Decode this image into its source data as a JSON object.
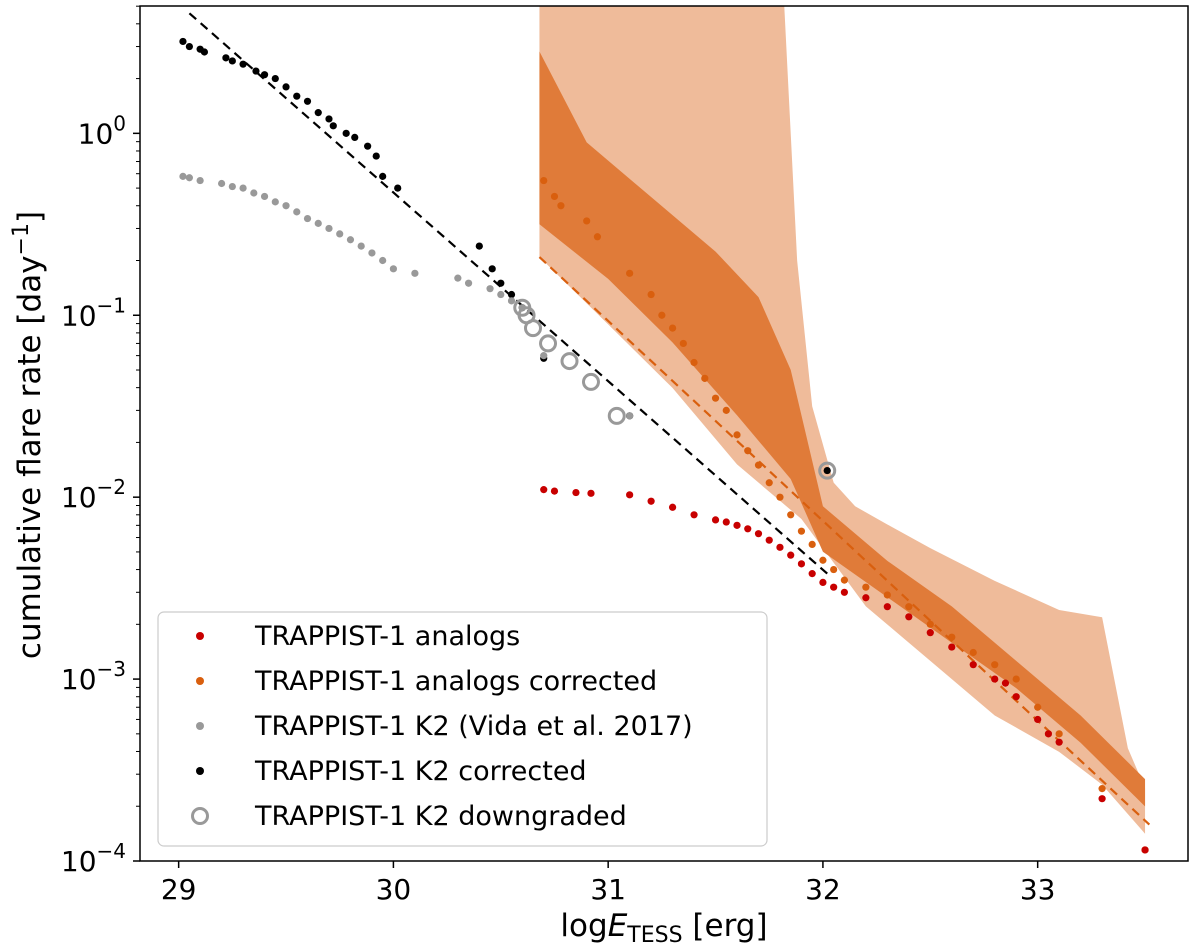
{
  "chart_data": {
    "type": "scatter",
    "xlabel": "logE_TESS [erg]",
    "ylabel": "cumulative flare rate [day^-1]",
    "xlim": [
      28.82,
      33.7
    ],
    "ylim_log10": [
      -4.0,
      0.7
    ],
    "yscale": "log",
    "xticks": [
      "29",
      "30",
      "31",
      "32",
      "33"
    ],
    "yticks": [
      {
        "base": "10",
        "exp": "0",
        "value": 1
      },
      {
        "base": "10",
        "exp": "-1",
        "value": 0.1
      },
      {
        "base": "10",
        "exp": "-2",
        "value": 0.01
      },
      {
        "base": "10",
        "exp": "-3",
        "value": 0.001
      },
      {
        "base": "10",
        "exp": "-4",
        "value": 0.0001
      }
    ],
    "colors": {
      "analogs": "#c80000",
      "corrected": "#d95f0e",
      "band_inner": "#e07b39",
      "band_outer": "#efbb9a",
      "k2_vida": "#999999",
      "k2_corrected": "#000000",
      "k2_downgraded": "#999999",
      "fit_k2": "#000000",
      "fit_analogs": "#d95f0e"
    },
    "legend": [
      {
        "label": "TRAPPIST-1 analogs",
        "marker": "dot",
        "color": "#c80000"
      },
      {
        "label": "TRAPPIST-1 analogs corrected",
        "marker": "dot",
        "color": "#d95f0e"
      },
      {
        "label": "TRAPPIST-1 K2 (Vida et al. 2017)",
        "marker": "dot",
        "color": "#999999"
      },
      {
        "label": "TRAPPIST-1 K2 corrected",
        "marker": "dot",
        "color": "#000000"
      },
      {
        "label": "TRAPPIST-1 K2 downgraded",
        "marker": "ring",
        "color": "#999999"
      }
    ],
    "bands": {
      "outer": {
        "upper": [
          [
            30.68,
            0.7
          ],
          [
            31.82,
            0.7
          ],
          [
            31.88,
            -0.7
          ],
          [
            31.95,
            -1.5
          ],
          [
            32.05,
            -1.92
          ],
          [
            32.15,
            -2.05
          ],
          [
            32.3,
            -2.15
          ],
          [
            32.5,
            -2.28
          ],
          [
            32.8,
            -2.46
          ],
          [
            33.1,
            -2.62
          ],
          [
            33.3,
            -2.66
          ],
          [
            33.42,
            -3.38
          ],
          [
            33.5,
            -3.6
          ]
        ],
        "lower": [
          [
            30.68,
            -0.68
          ],
          [
            31.0,
            -1.05
          ],
          [
            31.3,
            -1.4
          ],
          [
            31.6,
            -1.82
          ],
          [
            31.9,
            -2.12
          ],
          [
            32.2,
            -2.6
          ],
          [
            32.5,
            -2.9
          ],
          [
            32.8,
            -3.2
          ],
          [
            33.1,
            -3.4
          ],
          [
            33.3,
            -3.58
          ],
          [
            33.5,
            -3.85
          ]
        ]
      },
      "inner": {
        "upper": [
          [
            30.68,
            0.45
          ],
          [
            30.9,
            -0.05
          ],
          [
            31.2,
            -0.35
          ],
          [
            31.5,
            -0.65
          ],
          [
            31.7,
            -0.9
          ],
          [
            31.85,
            -1.3
          ],
          [
            32.0,
            -2.05
          ],
          [
            32.3,
            -2.35
          ],
          [
            32.6,
            -2.6
          ],
          [
            32.9,
            -2.9
          ],
          [
            33.2,
            -3.2
          ],
          [
            33.5,
            -3.55
          ]
        ],
        "lower": [
          [
            30.68,
            -0.5
          ],
          [
            31.0,
            -0.8
          ],
          [
            31.3,
            -1.15
          ],
          [
            31.6,
            -1.55
          ],
          [
            31.85,
            -1.9
          ],
          [
            32.0,
            -2.3
          ],
          [
            32.3,
            -2.55
          ],
          [
            32.6,
            -2.8
          ],
          [
            32.9,
            -3.05
          ],
          [
            33.2,
            -3.35
          ],
          [
            33.5,
            -3.7
          ]
        ]
      }
    },
    "fits": [
      {
        "name": "K2 power law",
        "x": [
          29.05,
          32.02
        ],
        "y_log10": [
          0.66,
          -2.42
        ],
        "color": "#000000"
      },
      {
        "name": "analogs power law",
        "x": [
          30.68,
          33.52
        ],
        "y_log10": [
          -0.68,
          -3.8
        ],
        "color": "#d95f0e"
      }
    ],
    "series": [
      {
        "name": "TRAPPIST-1 K2 corrected",
        "x": [
          29.02,
          29.05,
          29.1,
          29.12,
          29.22,
          29.25,
          29.3,
          29.36,
          29.4,
          29.45,
          29.5,
          29.55,
          29.6,
          29.65,
          29.7,
          29.72,
          29.78,
          29.82,
          29.88,
          29.92,
          29.95,
          30.02,
          30.4,
          30.46,
          30.5,
          30.55,
          30.6,
          30.7,
          31.1
        ],
        "y": [
          3.2,
          3.0,
          2.9,
          2.8,
          2.6,
          2.5,
          2.4,
          2.2,
          2.1,
          2.0,
          1.8,
          1.6,
          1.5,
          1.3,
          1.2,
          1.1,
          1.0,
          0.95,
          0.85,
          0.75,
          0.58,
          0.5,
          0.24,
          0.18,
          0.15,
          0.13,
          0.11,
          0.058,
          0.028
        ]
      },
      {
        "name": "TRAPPIST-1 K2 (Vida et al. 2017)",
        "x": [
          29.02,
          29.05,
          29.1,
          29.2,
          29.25,
          29.3,
          29.35,
          29.4,
          29.45,
          29.5,
          29.55,
          29.6,
          29.65,
          29.7,
          29.75,
          29.8,
          29.85,
          29.9,
          29.95,
          30.0,
          30.1,
          30.3,
          30.35,
          30.45,
          30.5,
          30.55,
          30.6,
          30.7,
          31.1
        ],
        "y": [
          0.58,
          0.57,
          0.55,
          0.53,
          0.51,
          0.5,
          0.47,
          0.45,
          0.42,
          0.4,
          0.37,
          0.34,
          0.32,
          0.3,
          0.28,
          0.26,
          0.24,
          0.22,
          0.2,
          0.18,
          0.17,
          0.16,
          0.15,
          0.14,
          0.13,
          0.12,
          0.11,
          0.06,
          0.028
        ]
      },
      {
        "name": "TRAPPIST-1 K2 downgraded",
        "x": [
          30.6,
          30.62,
          30.65,
          30.72,
          30.82,
          30.92,
          31.04
        ],
        "y": [
          0.11,
          0.1,
          0.085,
          0.07,
          0.056,
          0.043,
          0.028
        ]
      },
      {
        "name": "TRAPPIST-1 analogs corrected",
        "x": [
          30.7,
          30.75,
          30.78,
          30.9,
          30.95,
          31.1,
          31.2,
          31.25,
          31.3,
          31.35,
          31.4,
          31.45,
          31.5,
          31.55,
          31.6,
          31.65,
          31.7,
          31.75,
          31.8,
          31.85,
          31.9,
          31.95,
          32.0,
          32.05,
          32.1,
          32.2,
          32.3,
          32.4,
          32.5,
          32.6,
          32.7,
          32.8,
          32.9,
          33.0,
          33.1,
          33.3,
          33.5
        ],
        "y": [
          0.55,
          0.45,
          0.4,
          0.33,
          0.27,
          0.17,
          0.13,
          0.1,
          0.085,
          0.07,
          0.055,
          0.045,
          0.035,
          0.03,
          0.022,
          0.018,
          0.015,
          0.012,
          0.01,
          0.008,
          0.0065,
          0.0055,
          0.0045,
          0.004,
          0.0035,
          0.0032,
          0.0029,
          0.0025,
          0.002,
          0.0017,
          0.0014,
          0.0012,
          0.001,
          0.0007,
          0.0005,
          0.00025,
          0.000115
        ]
      },
      {
        "name": "TRAPPIST-1 analogs",
        "x": [
          30.7,
          30.75,
          30.85,
          30.92,
          31.1,
          31.2,
          31.3,
          31.4,
          31.5,
          31.55,
          31.6,
          31.65,
          31.7,
          31.75,
          31.8,
          31.85,
          31.9,
          31.95,
          32.0,
          32.05,
          32.1,
          32.2,
          32.3,
          32.4,
          32.5,
          32.6,
          32.7,
          32.8,
          32.85,
          32.9,
          33.0,
          33.05,
          33.1,
          33.3,
          33.5
        ],
        "y": [
          0.011,
          0.0108,
          0.0106,
          0.0105,
          0.0103,
          0.0095,
          0.0088,
          0.008,
          0.0075,
          0.0073,
          0.007,
          0.0067,
          0.0063,
          0.0058,
          0.0053,
          0.0048,
          0.0043,
          0.0038,
          0.0034,
          0.0032,
          0.003,
          0.0028,
          0.0025,
          0.0022,
          0.0018,
          0.0015,
          0.0012,
          0.001,
          0.00095,
          0.0008,
          0.0006,
          0.0005,
          0.00045,
          0.00022,
          0.000115
        ]
      }
    ],
    "highlight_point": {
      "name": "outlier K2 corrected flare",
      "x": 32.02,
      "y": 0.014
    }
  }
}
